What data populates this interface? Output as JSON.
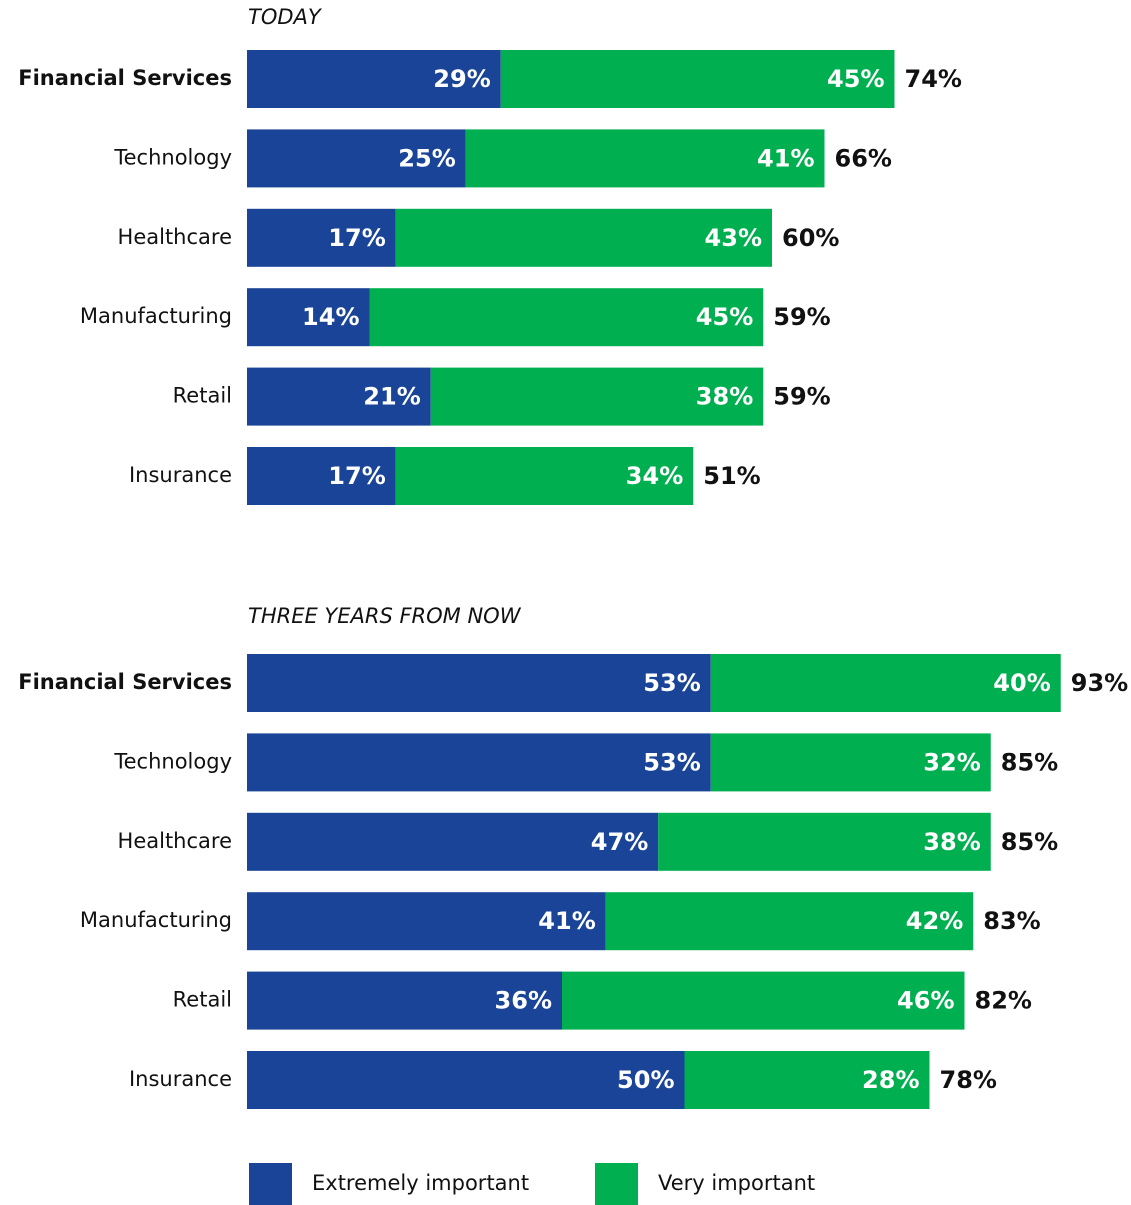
{
  "chart_data": [
    {
      "type": "stacked-bar",
      "title": "TODAY",
      "categories": [
        "Financial Services",
        "Technology",
        "Healthcare",
        "Manufacturing",
        "Retail",
        "Insurance"
      ],
      "series": [
        {
          "color": "#1a4497",
          "values": [
            29,
            25,
            17,
            14,
            21,
            17
          ],
          "value_labels": [
            "29%",
            "25%",
            "17%",
            "14%",
            "21%",
            "17%"
          ]
        },
        {
          "color": "#00b050",
          "values": [
            45,
            41,
            43,
            45,
            38,
            34
          ],
          "value_labels": [
            "45%",
            "41%",
            "43%",
            "45%",
            "38%",
            "34%"
          ]
        }
      ],
      "totals": [
        74,
        66,
        60,
        59,
        59,
        51
      ],
      "total_labels": [
        "74%",
        "66%",
        "60%",
        "59%",
        "59%",
        "51%"
      ],
      "xlim": [
        0,
        100
      ]
    },
    {
      "type": "stacked-bar",
      "title": "THREE YEARS FROM NOW",
      "categories": [
        "Financial Services",
        "Technology",
        "Healthcare",
        "Manufacturing",
        "Retail",
        "Insurance"
      ],
      "series": [
        {
          "name": "Extremely important",
          "color": "#1a4497",
          "values": [
            53,
            53,
            47,
            41,
            36,
            50
          ],
          "value_labels": [
            "53%",
            "53%",
            "47%",
            "41%",
            "36%",
            "50%"
          ]
        },
        {
          "name": "Very important",
          "color": "#00b050",
          "values": [
            40,
            32,
            38,
            42,
            46,
            28
          ],
          "value_labels": [
            "40%",
            "32%",
            "38%",
            "42%",
            "46%",
            "28%"
          ]
        }
      ],
      "totals": [
        93,
        85,
        85,
        83,
        82,
        78
      ],
      "total_labels": [
        "93%",
        "85%",
        "85%",
        "83%",
        "82%",
        "78%"
      ],
      "xlim": [
        0,
        100
      ]
    }
  ]
}
